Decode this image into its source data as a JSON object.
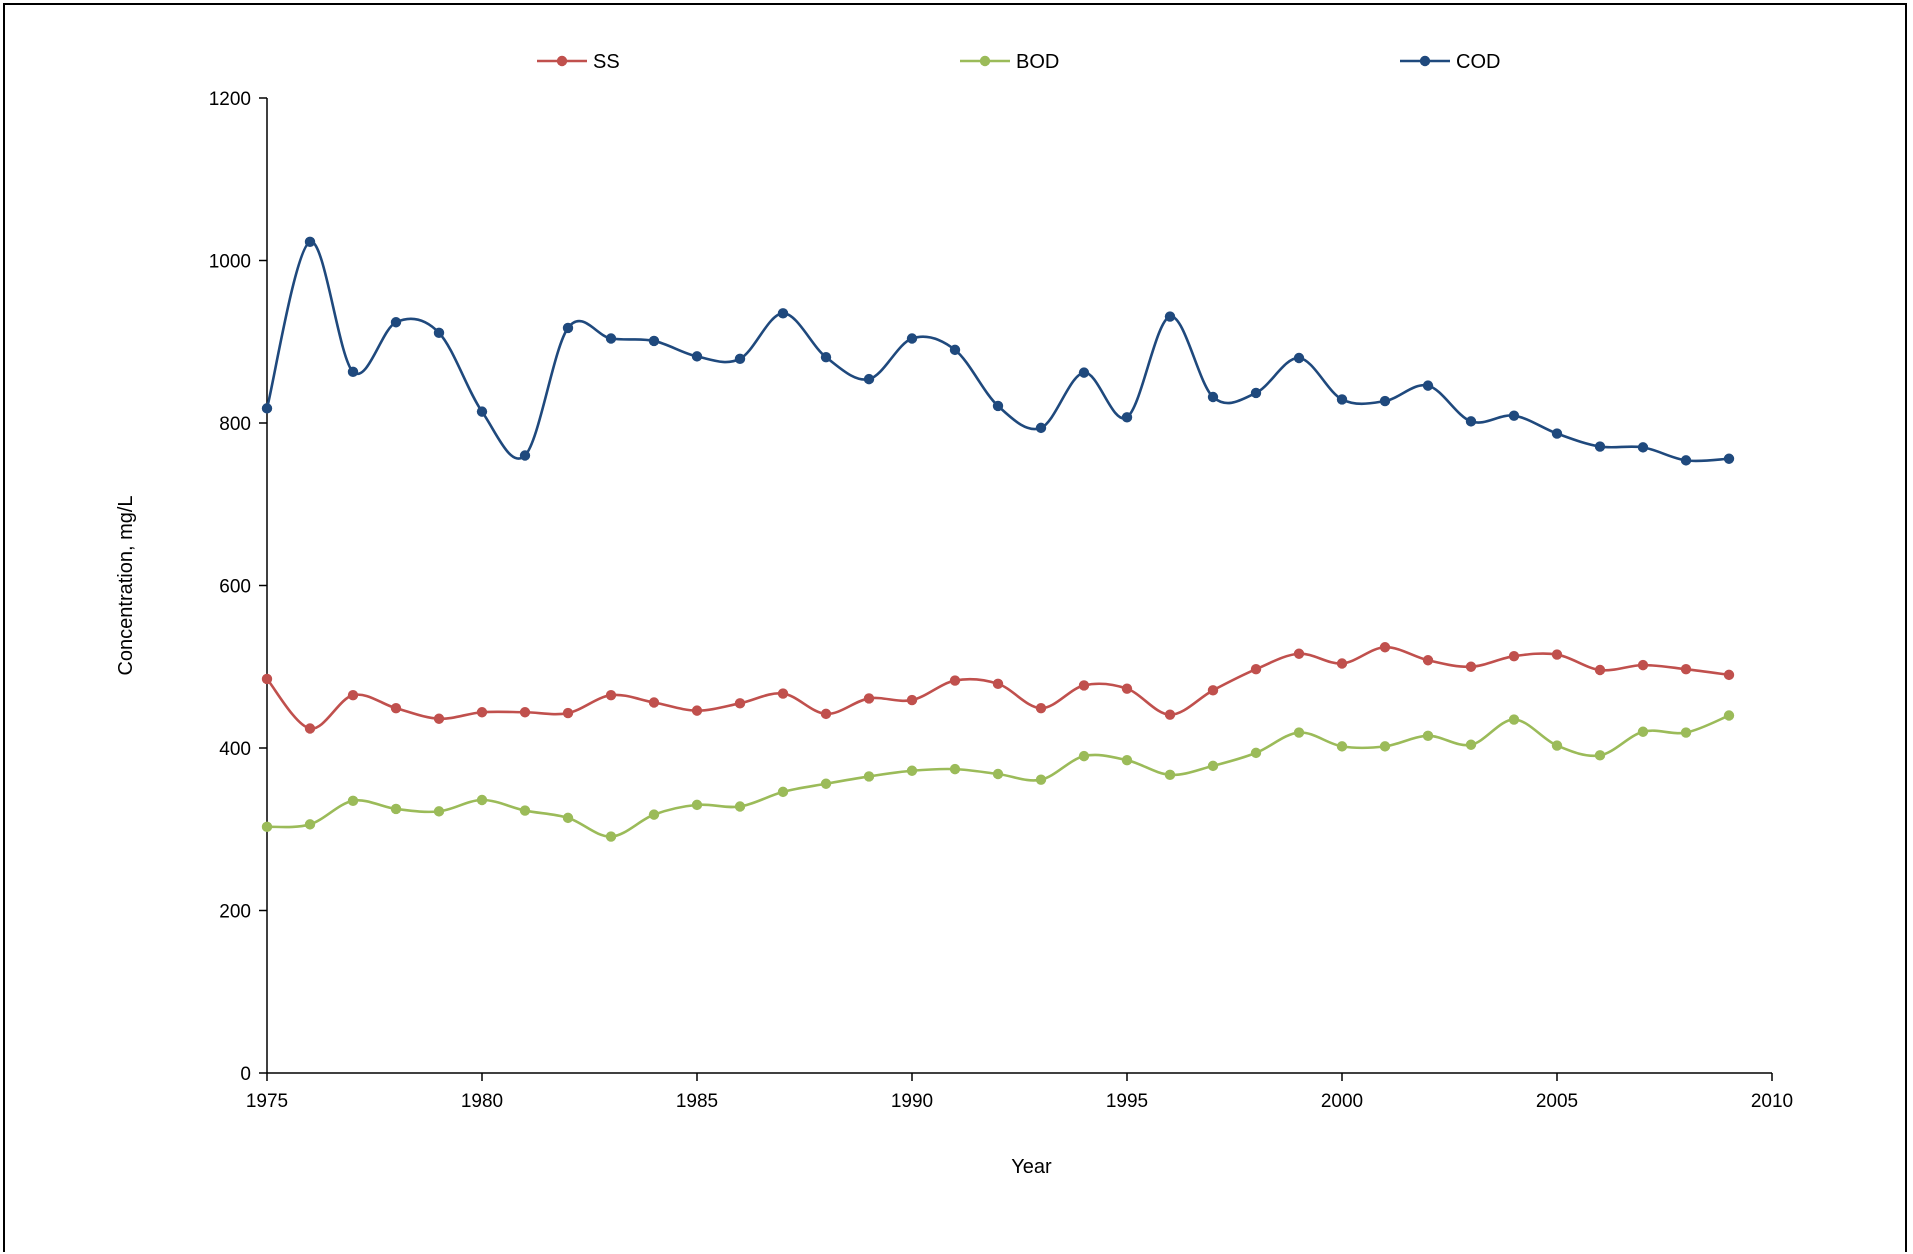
{
  "chart_data": {
    "type": "line",
    "title": "",
    "xlabel": "Year",
    "ylabel": "Concentration, mg/L",
    "xlim": [
      1975,
      2010
    ],
    "ylim": [
      0,
      1200
    ],
    "xticks": [
      1975,
      1980,
      1985,
      1990,
      1995,
      2000,
      2005,
      2010
    ],
    "yticks": [
      0,
      200,
      400,
      600,
      800,
      1000,
      1200
    ],
    "grid": false,
    "smooth": true,
    "legend_position": "top",
    "x": [
      1975,
      1976,
      1977,
      1978,
      1979,
      1980,
      1981,
      1982,
      1983,
      1984,
      1985,
      1986,
      1987,
      1988,
      1989,
      1990,
      1991,
      1992,
      1993,
      1994,
      1995,
      1996,
      1997,
      1998,
      1999,
      2000,
      2001,
      2002,
      2003,
      2004,
      2005,
      2006,
      2007,
      2008,
      2009
    ],
    "series": [
      {
        "name": "SS",
        "color": "#c0504d",
        "values": [
          485,
          424,
          465,
          449,
          436,
          444,
          444,
          443,
          465,
          456,
          446,
          455,
          467,
          442,
          461,
          459,
          483,
          479,
          449,
          477,
          473,
          441,
          471,
          497,
          516,
          504,
          524,
          508,
          500,
          513,
          515,
          496,
          502,
          497,
          490
        ]
      },
      {
        "name": "BOD",
        "color": "#9bbb59",
        "values": [
          303,
          306,
          335,
          325,
          322,
          336,
          323,
          314,
          291,
          318,
          330,
          328,
          346,
          356,
          365,
          372,
          374,
          368,
          361,
          390,
          385,
          367,
          378,
          394,
          419,
          402,
          402,
          415,
          404,
          435,
          403,
          391,
          420,
          419,
          440
        ]
      },
      {
        "name": "COD",
        "color": "#1f497d",
        "values": [
          818,
          1023,
          863,
          924,
          911,
          814,
          760,
          917,
          904,
          901,
          882,
          879,
          935,
          881,
          854,
          904,
          890,
          821,
          794,
          862,
          807,
          931,
          832,
          837,
          880,
          829,
          827,
          846,
          802,
          809,
          787,
          771,
          770,
          754,
          756
        ]
      }
    ]
  }
}
